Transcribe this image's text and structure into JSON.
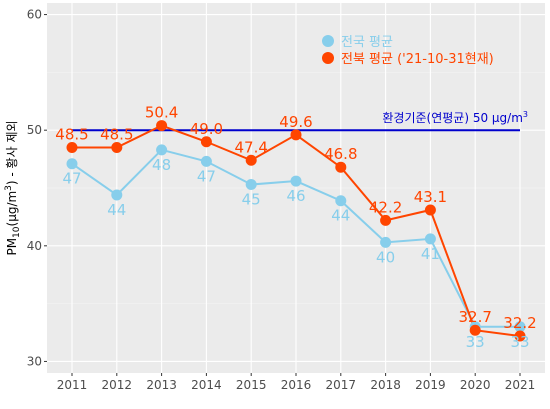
{
  "chart_data": {
    "type": "line",
    "x": [
      "2011",
      "2012",
      "2013",
      "2014",
      "2015",
      "2016",
      "2017",
      "2018",
      "2019",
      "2020",
      "2021"
    ],
    "ylim": [
      29,
      61
    ],
    "yticks": [
      30,
      40,
      50,
      60
    ],
    "grid": true,
    "ylabel": "PM10(μg/m3) - 황사 제외",
    "ylabel_parts": {
      "pm": "PM",
      "sub": "10",
      "unit_open": "(μg/m",
      "sup": "3",
      "rest": ") - 황사 제외"
    },
    "series": [
      {
        "name": "전국 평균",
        "color": "#87ceeb",
        "values": [
          47.1,
          44.4,
          48.3,
          47.3,
          45.3,
          45.6,
          43.9,
          40.3,
          40.6,
          33.0,
          33.0
        ],
        "labels": [
          "47",
          "44",
          "48",
          "47",
          "45",
          "46",
          "44",
          "40",
          "41",
          "33",
          "33"
        ]
      },
      {
        "name": "전북 평균 ('21-10-31현재)",
        "color": "#ff4500",
        "values": [
          48.5,
          48.5,
          50.4,
          49.0,
          47.4,
          49.6,
          46.8,
          42.2,
          43.1,
          32.7,
          32.2
        ],
        "labels": [
          "48.5",
          "48.5",
          "50.4",
          "49.0",
          "47.4",
          "49.6",
          "46.8",
          "42.2",
          "43.1",
          "32.7",
          "32.2"
        ]
      }
    ],
    "reference_line": {
      "value": 50,
      "color": "#0000cd",
      "label_text": "환경기준(연평균) 50 μg/m",
      "label_sup": "3"
    },
    "legend_position": "top-right inside"
  }
}
